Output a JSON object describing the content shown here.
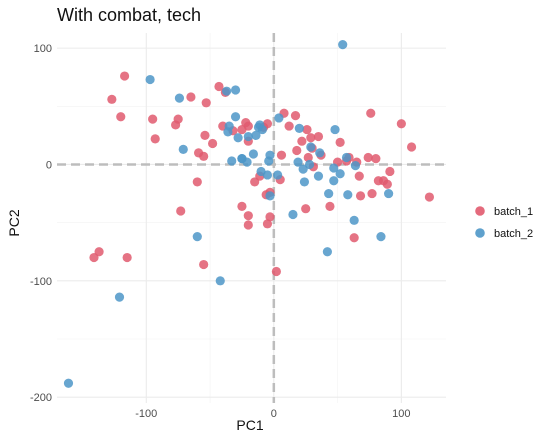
{
  "chart_data": {
    "type": "scatter",
    "title": "With combat, tech",
    "xlabel": "PC1",
    "ylabel": "PC2",
    "xlim": [
      -170,
      135
    ],
    "ylim": [
      -205,
      113
    ],
    "x_ticks": [
      -100,
      0,
      100
    ],
    "x_tick_labels": [
      "-100",
      "0",
      "100"
    ],
    "y_ticks": [
      -200,
      -100,
      0,
      100
    ],
    "y_tick_labels": [
      "-200",
      "-100",
      "0",
      "100"
    ],
    "grid": true,
    "reference_lines": {
      "x": 0,
      "y": 0,
      "style": "dashed"
    },
    "legend_position": "right",
    "series": [
      {
        "name": "batch_1",
        "color": "#E15A6E",
        "points": [
          [
            -127,
            56
          ],
          [
            -120,
            41
          ],
          [
            -117,
            76
          ],
          [
            -95,
            39
          ],
          [
            -93,
            22
          ],
          [
            -77,
            34
          ],
          [
            -75,
            39
          ],
          [
            -65,
            58
          ],
          [
            -53,
            53
          ],
          [
            -43,
            67
          ],
          [
            -38,
            62
          ],
          [
            -59,
            10
          ],
          [
            -55,
            7
          ],
          [
            -48,
            18
          ],
          [
            -54,
            25
          ],
          [
            -40,
            33
          ],
          [
            -32,
            29
          ],
          [
            -60,
            -15
          ],
          [
            -73,
            -40
          ],
          [
            -137,
            -75
          ],
          [
            -141,
            -80
          ],
          [
            -115,
            -80
          ],
          [
            -55,
            -86
          ],
          [
            -25,
            -36
          ],
          [
            -20,
            -44
          ],
          [
            -20,
            -52
          ],
          [
            2,
            -92
          ],
          [
            -3,
            -45
          ],
          [
            -5,
            -51
          ],
          [
            -3,
            -24
          ],
          [
            -6,
            -26
          ],
          [
            -11,
            -10
          ],
          [
            -15,
            -15
          ],
          [
            -25,
            30
          ],
          [
            -20,
            33
          ],
          [
            -22,
            36
          ],
          [
            -20,
            20
          ],
          [
            -8,
            32
          ],
          [
            -5,
            35
          ],
          [
            8,
            44
          ],
          [
            12,
            33
          ],
          [
            17,
            42
          ],
          [
            22,
            20
          ],
          [
            26,
            30
          ],
          [
            30,
            14
          ],
          [
            29,
            23
          ],
          [
            27,
            6
          ],
          [
            35,
            24
          ],
          [
            37,
            8
          ],
          [
            31,
            -2
          ],
          [
            25,
            -38
          ],
          [
            44,
            -36
          ],
          [
            50,
            2
          ],
          [
            52,
            19
          ],
          [
            57,
            3
          ],
          [
            59,
            6
          ],
          [
            65,
            2
          ],
          [
            67,
            -10
          ],
          [
            68,
            -27
          ],
          [
            63,
            -63
          ],
          [
            74,
            6
          ],
          [
            80,
            5
          ],
          [
            82,
            -14
          ],
          [
            86,
            -14
          ],
          [
            89,
            -17
          ],
          [
            91,
            -6
          ],
          [
            100,
            35
          ],
          [
            108,
            15
          ],
          [
            122,
            -28
          ],
          [
            77,
            -25
          ],
          [
            76,
            44
          ],
          [
            6,
            8
          ],
          [
            18,
            12
          ],
          [
            5,
            -13
          ]
        ]
      },
      {
        "name": "batch_2",
        "color": "#4E97C8",
        "points": [
          [
            54,
            103
          ],
          [
            -97,
            73
          ],
          [
            -74,
            57
          ],
          [
            -71,
            13
          ],
          [
            -60,
            -62
          ],
          [
            -42,
            -100
          ],
          [
            -121,
            -114
          ],
          [
            -161,
            -188
          ],
          [
            -37,
            63
          ],
          [
            -30,
            64
          ],
          [
            -30,
            41
          ],
          [
            -35,
            33
          ],
          [
            -36,
            28
          ],
          [
            -33,
            3
          ],
          [
            -25,
            5
          ],
          [
            -28,
            23
          ],
          [
            -20,
            24
          ],
          [
            -25,
            5
          ],
          [
            -21,
            2
          ],
          [
            -16,
            9
          ],
          [
            -14,
            25
          ],
          [
            -12,
            32
          ],
          [
            -11,
            34
          ],
          [
            -4,
            3
          ],
          [
            -5,
            -9
          ],
          [
            -10,
            -6
          ],
          [
            4,
            40
          ],
          [
            -9,
            30
          ],
          [
            -3,
            -27
          ],
          [
            3,
            -9
          ],
          [
            -3,
            8
          ],
          [
            15,
            -43
          ],
          [
            20,
            31
          ],
          [
            19,
            2
          ],
          [
            23,
            -4
          ],
          [
            24,
            -15
          ],
          [
            28,
            0
          ],
          [
            29,
            15
          ],
          [
            36,
            10
          ],
          [
            35,
            -10
          ],
          [
            43,
            -25
          ],
          [
            42,
            -75
          ],
          [
            47,
            -3
          ],
          [
            47,
            -14
          ],
          [
            48,
            30
          ],
          [
            52,
            -8
          ],
          [
            57,
            6
          ],
          [
            63,
            -48
          ],
          [
            64,
            -1
          ],
          [
            84,
            -62
          ],
          [
            90,
            -25
          ],
          [
            58,
            -26
          ]
        ]
      }
    ]
  }
}
